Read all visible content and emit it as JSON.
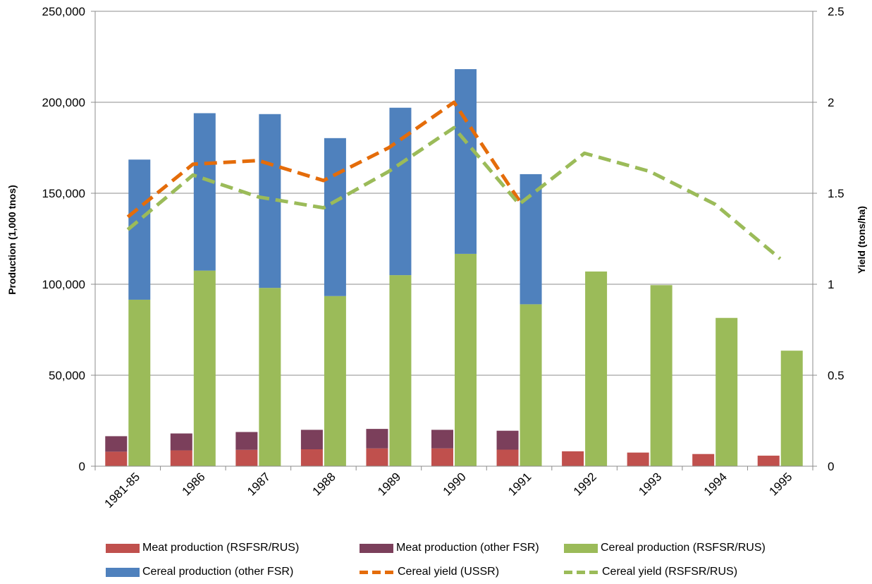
{
  "chart_data": {
    "type": "bar",
    "categories": [
      "1981-85",
      "1986",
      "1987",
      "1988",
      "1989",
      "1990",
      "1991",
      "1992",
      "1993",
      "1994",
      "1995"
    ],
    "y_left": {
      "label": "Production (1,000 tnos)",
      "range": [
        0,
        250000
      ],
      "ticks": [
        "0",
        "50,000",
        "100,000",
        "150,000",
        "200,000",
        "250,000"
      ]
    },
    "y_right": {
      "label": "Yield (tons/ha)",
      "range": [
        0,
        2.5
      ],
      "ticks": [
        "0",
        "0.5",
        "1",
        "1.5",
        "2",
        "2.5"
      ]
    },
    "gridlines": true,
    "legend_position": "bottom",
    "stacks": [
      {
        "stack": "meat",
        "series": [
          {
            "name": "Meat production (RSFSR/RUS)",
            "color": "#c0504d",
            "values": [
              8000,
              8700,
              9000,
              9300,
              9800,
              9800,
              9100,
              8200,
              7500,
              6700,
              5800
            ]
          },
          {
            "name": "Meat production (other FSR)",
            "color": "#7b3f5b",
            "values": [
              8500,
              9300,
              9800,
              10700,
              10700,
              10200,
              10400,
              null,
              null,
              null,
              null
            ]
          }
        ]
      },
      {
        "stack": "cereal",
        "series": [
          {
            "name": "Cereal production (RSFSR/RUS)",
            "color": "#9bbb59",
            "values": [
              91500,
              107500,
              98000,
              93500,
              105000,
              116700,
              89000,
              107000,
              99500,
              81500,
              63500
            ]
          },
          {
            "name": "Cereal production (other FSR)",
            "color": "#4f81bd",
            "values": [
              77000,
              86500,
              95500,
              86800,
              92000,
              101500,
              71500,
              null,
              null,
              null,
              null
            ]
          }
        ]
      }
    ],
    "lines": [
      {
        "name": "Cereal yield (USSR)",
        "color": "#e46c0a",
        "axis": "right",
        "values": [
          1.37,
          1.66,
          1.68,
          1.57,
          1.75,
          2.0,
          1.46,
          null,
          null,
          null,
          null
        ]
      },
      {
        "name": "Cereal yield (RSFSR/RUS)",
        "color": "#9bbb59",
        "axis": "right",
        "values": [
          1.3,
          1.6,
          1.48,
          1.42,
          1.62,
          1.86,
          1.44,
          1.72,
          1.62,
          1.44,
          1.14
        ]
      }
    ],
    "legend": [
      [
        "Meat production (RSFSR/RUS)",
        "Meat production (other FSR)",
        "Cereal production (RSFSR/RUS)"
      ],
      [
        "Cereal production (other FSR)",
        "Cereal yield (USSR)",
        "Cereal yield (RSFSR/RUS)"
      ]
    ]
  }
}
